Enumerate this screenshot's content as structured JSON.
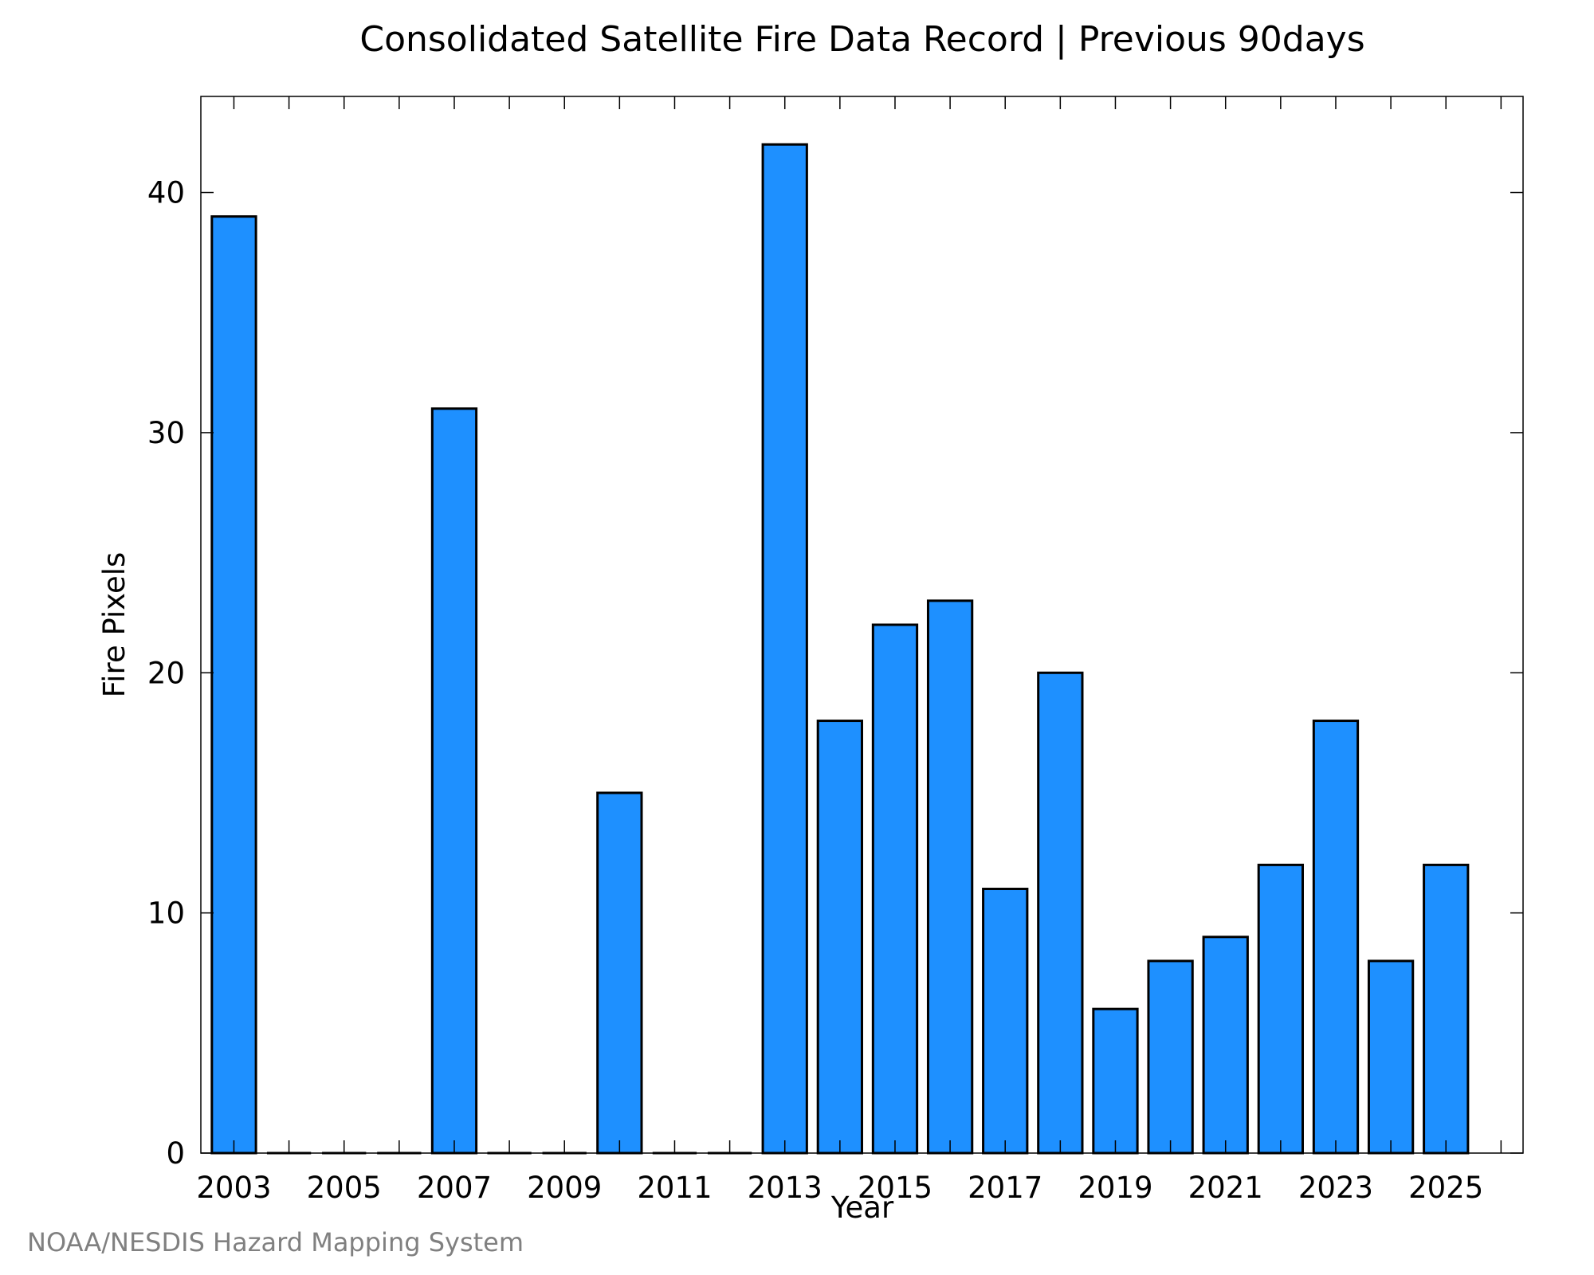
{
  "chart_data": {
    "type": "bar",
    "title": "Consolidated Satellite Fire Data Record | Previous 90days",
    "xlabel": "Year",
    "ylabel": "Fire Pixels",
    "categories": [
      2003,
      2004,
      2005,
      2006,
      2007,
      2008,
      2009,
      2010,
      2011,
      2012,
      2013,
      2014,
      2015,
      2016,
      2017,
      2018,
      2019,
      2020,
      2021,
      2022,
      2023,
      2024,
      2025
    ],
    "values": [
      39,
      0,
      0,
      0,
      31,
      0,
      0,
      15,
      0,
      0,
      42,
      18,
      22,
      23,
      11,
      20,
      6,
      8,
      9,
      12,
      18,
      8,
      12
    ],
    "x_tick_labels": [
      "2003",
      "2005",
      "2007",
      "2009",
      "2011",
      "2013",
      "2015",
      "2017",
      "2019",
      "2021",
      "2023",
      "2025"
    ],
    "y_tick_labels": [
      "0",
      "10",
      "20",
      "30",
      "40"
    ],
    "xlim": [
      2002.4,
      2026.4
    ],
    "ylim": [
      0,
      44
    ],
    "bar_color": "#1e90ff",
    "grid": false,
    "legend": "none"
  },
  "credit": "NOAA/NESDIS Hazard Mapping System"
}
